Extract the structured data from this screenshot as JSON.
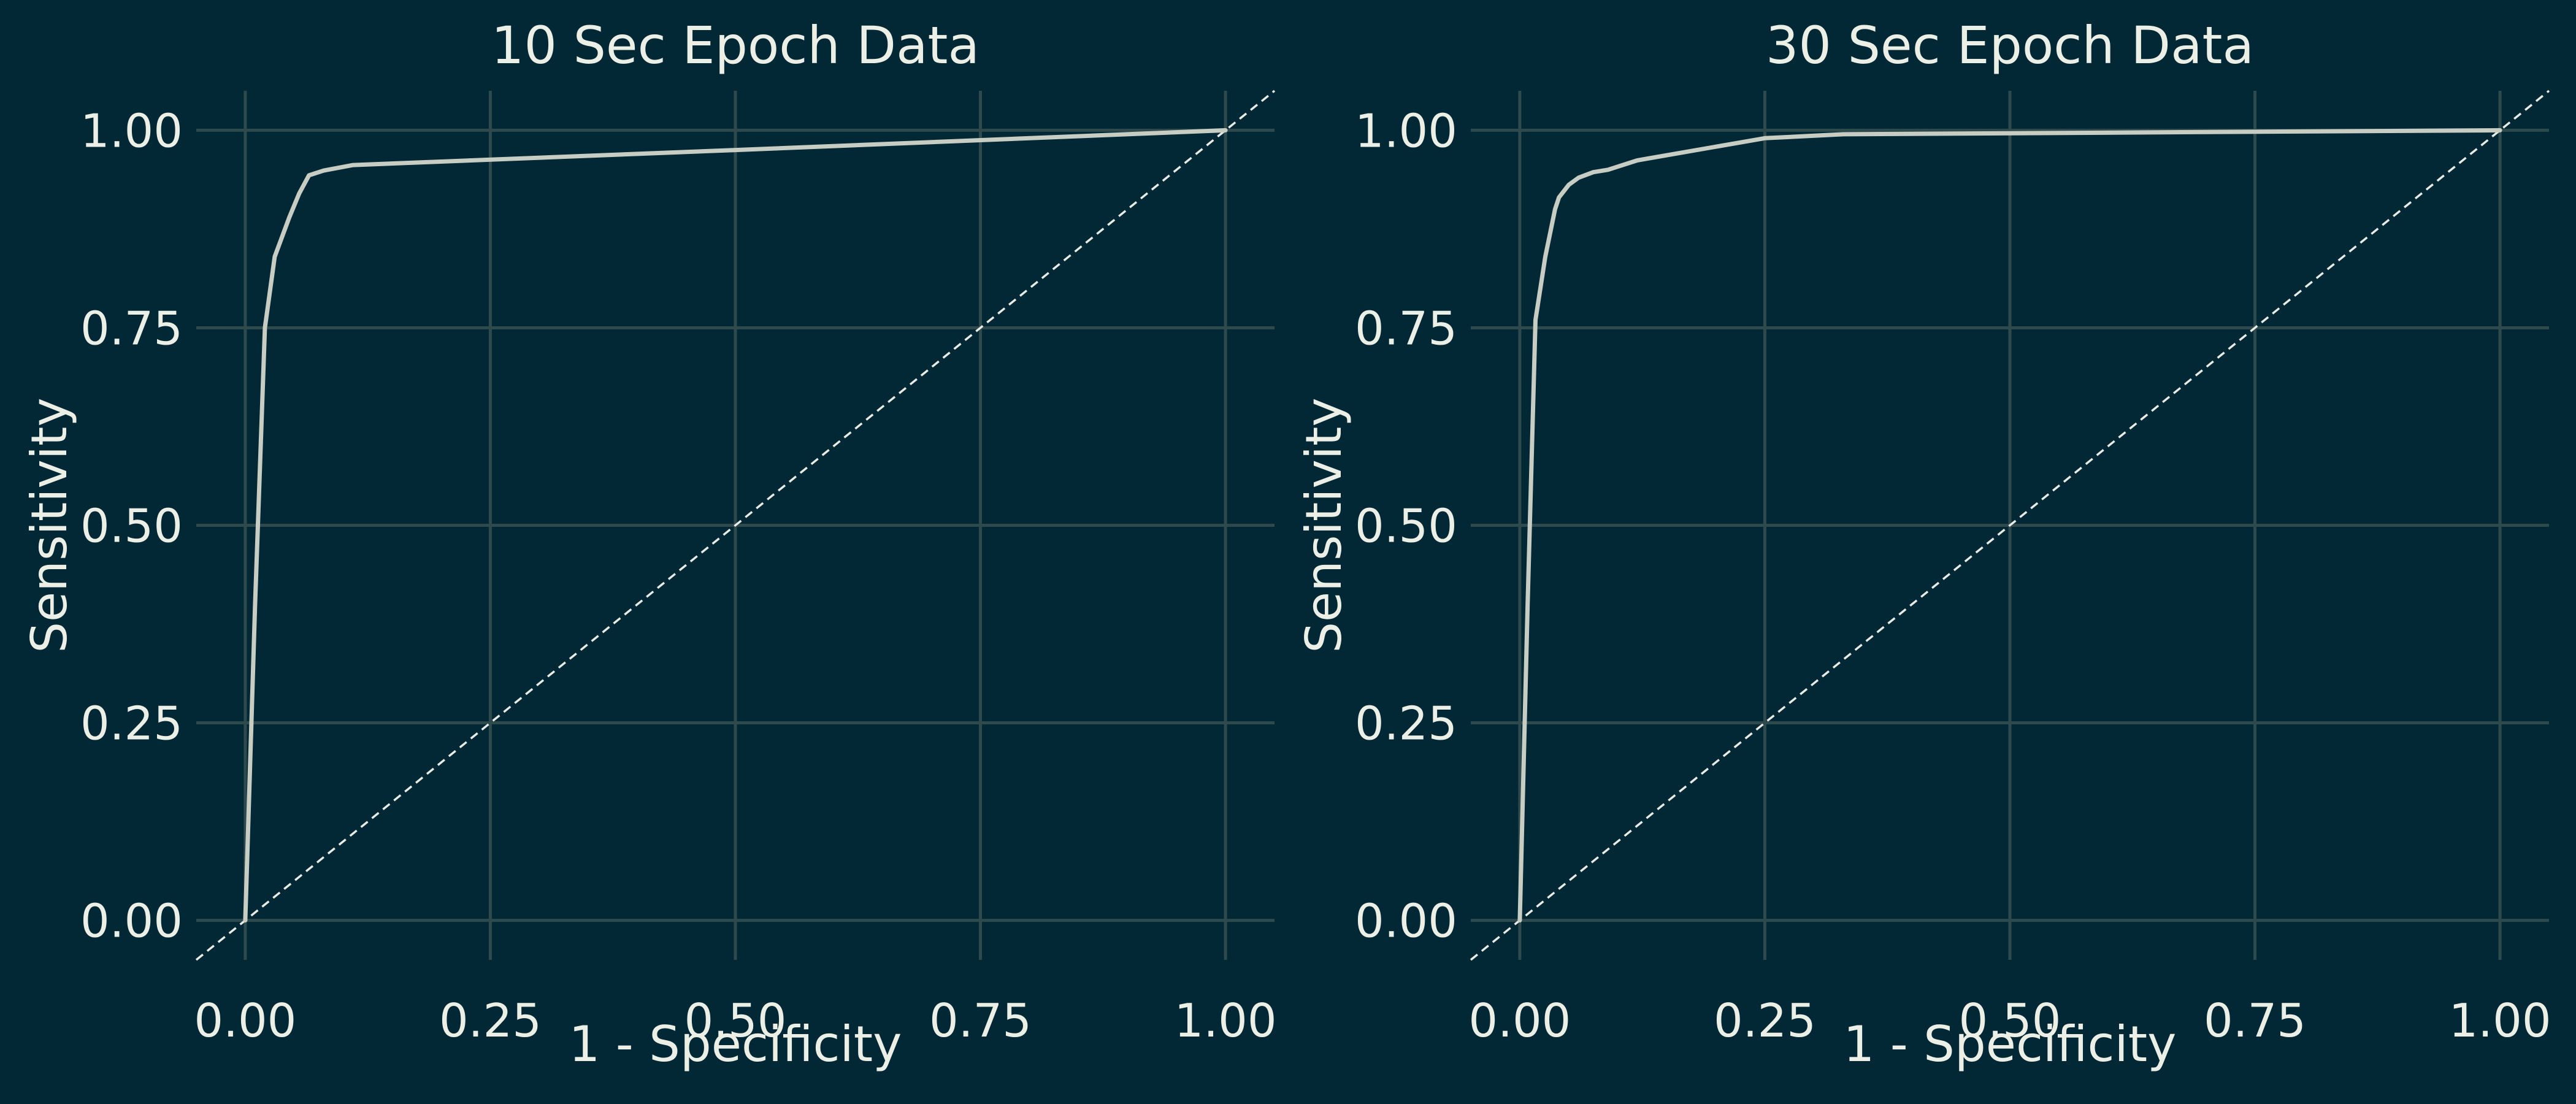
{
  "chart_data": [
    {
      "type": "line",
      "title": "10 Sec Epoch Data",
      "xlabel": "1 - Specificity",
      "ylabel": "Sensitivity",
      "xlim": [
        -0.05,
        1.05
      ],
      "ylim": [
        -0.05,
        1.05
      ],
      "xticks": [
        "0.00",
        "0.25",
        "0.50",
        "0.75",
        "1.00"
      ],
      "yticks": [
        "0.00",
        "0.25",
        "0.50",
        "0.75",
        "1.00"
      ],
      "grid": true,
      "reference_line": "dashed diagonal y = x",
      "series": [
        {
          "x": [
            0.0,
            0.01,
            0.02,
            0.03,
            0.045,
            0.055,
            0.065,
            0.08,
            0.11,
            0.5,
            1.0
          ],
          "y": [
            0.0,
            0.4,
            0.75,
            0.84,
            0.89,
            0.92,
            0.943,
            0.949,
            0.956,
            0.975,
            1.0
          ]
        }
      ],
      "colors": {
        "background": "#022835",
        "grid": "#2E4A4C",
        "curve": "#C8CDC4",
        "text": "#ECEFE6"
      }
    },
    {
      "type": "line",
      "title": "30 Sec Epoch Data",
      "xlabel": "1 - Specificity",
      "ylabel": "Sensitivity",
      "xlim": [
        -0.05,
        1.05
      ],
      "ylim": [
        -0.05,
        1.05
      ],
      "xticks": [
        "0.00",
        "0.25",
        "0.50",
        "0.75",
        "1.00"
      ],
      "yticks": [
        "0.00",
        "0.25",
        "0.50",
        "0.75",
        "1.00"
      ],
      "grid": true,
      "reference_line": "dashed diagonal y = x",
      "series": [
        {
          "x": [
            0.0,
            0.008,
            0.016,
            0.026,
            0.036,
            0.04,
            0.05,
            0.06,
            0.075,
            0.09,
            0.12,
            0.25,
            0.33,
            1.0
          ],
          "y": [
            0.0,
            0.4,
            0.76,
            0.84,
            0.9,
            0.915,
            0.931,
            0.94,
            0.947,
            0.95,
            0.962,
            0.99,
            0.995,
            1.0
          ]
        }
      ],
      "colors": {
        "background": "#022835",
        "grid": "#2E4A4C",
        "curve": "#C8CDC4",
        "text": "#ECEFE6"
      }
    }
  ]
}
